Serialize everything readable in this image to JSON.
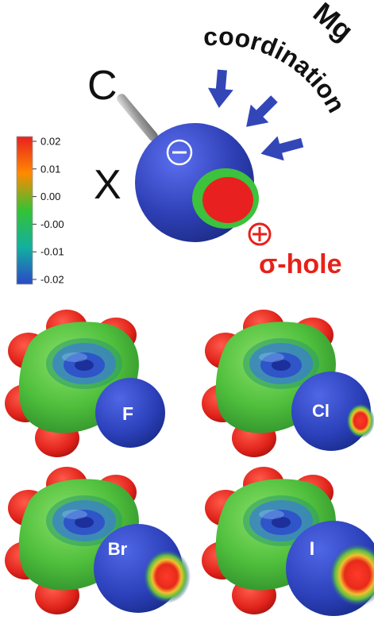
{
  "schematic": {
    "carbon_label": "C",
    "halogen_label": "X",
    "minus_symbol": "⊖",
    "plus_symbol": "⊕",
    "sigma_hole_label": "σ-hole",
    "mg_label": "Mg",
    "coordination_label": "coordination",
    "colors": {
      "sphere": "#2f3fb0",
      "sigma_hole": "#e82020",
      "ring": "#3cc23c",
      "label_red": "#e8201a",
      "arrow": "#3346b8"
    }
  },
  "colorbar": {
    "ticks": [
      "0.02",
      "0.01",
      "0.00",
      "-0.00",
      "-0.01",
      "-0.02"
    ],
    "max": 0.02,
    "min": -0.02,
    "colors": [
      "#e82020",
      "#ff8a00",
      "#34c234",
      "#12b0a0",
      "#2b48c8"
    ]
  },
  "molecules": [
    {
      "halogen": "F"
    },
    {
      "halogen": "Cl"
    },
    {
      "halogen": "Br"
    },
    {
      "halogen": "I"
    }
  ]
}
